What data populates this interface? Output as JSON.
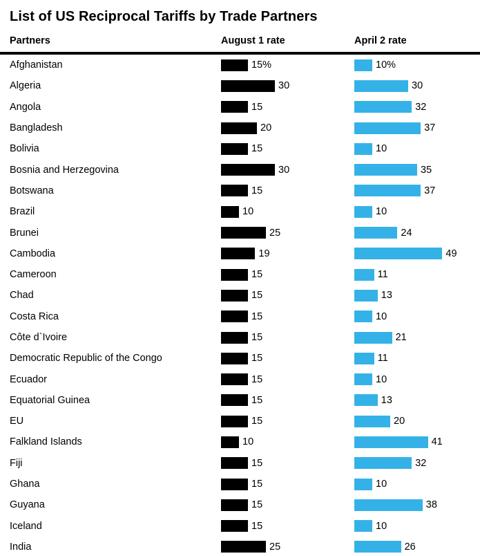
{
  "title": "List of US Reciprocal Tariffs by Trade Partners",
  "columns": {
    "partner": "Partners",
    "aug": "August 1 rate",
    "apr": "April 2 rate"
  },
  "colors": {
    "august_bar": "#000000",
    "april_bar": "#34b2e8",
    "header_rule": "#000000",
    "background": "#ffffff",
    "text": "#000000"
  },
  "chart_data": {
    "type": "bar",
    "title": "List of US Reciprocal Tariffs by Trade Partners",
    "xlabel": "",
    "ylabel": "",
    "unit": "percent",
    "xlim": [
      0,
      49
    ],
    "legend_position": "column-headers",
    "grid": false,
    "categories": [
      "Afghanistan",
      "Algeria",
      "Angola",
      "Bangladesh",
      "Bolivia",
      "Bosnia and Herzegovina",
      "Botswana",
      "Brazil",
      "Brunei",
      "Cambodia",
      "Cameroon",
      "Chad",
      "Costa Rica",
      "Côte d`Ivoire",
      "Democratic Republic of the Congo",
      "Ecuador",
      "Equatorial Guinea",
      "EU",
      "Falkland Islands",
      "Fiji",
      "Ghana",
      "Guyana",
      "Iceland",
      "India"
    ],
    "series": [
      {
        "name": "August 1 rate",
        "color": "#000000",
        "values": [
          15,
          30,
          15,
          20,
          15,
          30,
          15,
          10,
          25,
          19,
          15,
          15,
          15,
          15,
          15,
          15,
          15,
          15,
          10,
          15,
          15,
          15,
          15,
          25
        ],
        "labels": [
          "15%",
          "30",
          "15",
          "20",
          "15",
          "30",
          "15",
          "10",
          "25",
          "19",
          "15",
          "15",
          "15",
          "15",
          "15",
          "15",
          "15",
          "15",
          "10",
          "15",
          "15",
          "15",
          "15",
          "25"
        ]
      },
      {
        "name": "April 2 rate",
        "color": "#34b2e8",
        "values": [
          10,
          30,
          32,
          37,
          10,
          35,
          37,
          10,
          24,
          49,
          11,
          13,
          10,
          21,
          11,
          10,
          13,
          20,
          41,
          32,
          10,
          38,
          10,
          26
        ],
        "labels": [
          "10%",
          "30",
          "32",
          "37",
          "10",
          "35",
          "37",
          "10",
          "24",
          "49",
          "11",
          "13",
          "10",
          "21",
          "11",
          "10",
          "13",
          "20",
          "41",
          "32",
          "10",
          "38",
          "10",
          "26"
        ]
      }
    ]
  }
}
